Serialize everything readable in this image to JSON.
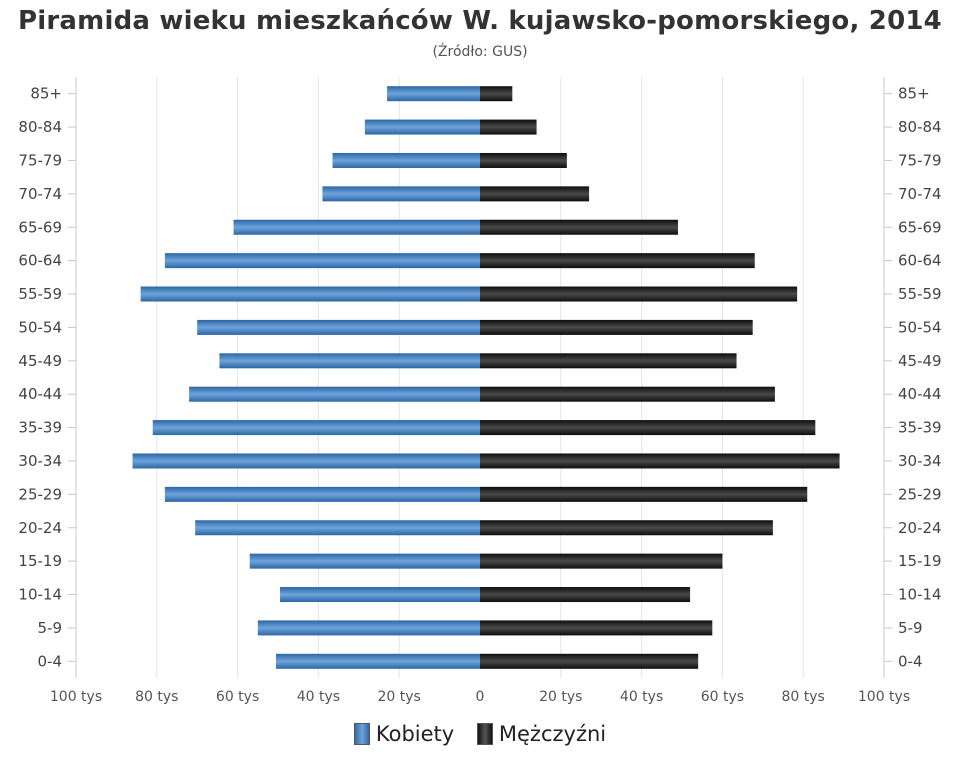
{
  "title": "Piramida wieku mieszkańców W. kujawsko-pomorskiego, 2014",
  "subtitle": "(Źródło: GUS)",
  "legend": {
    "female": "Kobiety",
    "male": "Mężczyźni"
  },
  "colors": {
    "female": "#3a78b8",
    "male": "#1a1a1a"
  },
  "chart_data": {
    "type": "bar",
    "orientation": "horizontal-population-pyramid",
    "categories": [
      "85+",
      "80-84",
      "75-79",
      "70-74",
      "65-69",
      "60-64",
      "55-59",
      "50-54",
      "45-49",
      "40-44",
      "35-39",
      "30-34",
      "25-29",
      "20-24",
      "15-19",
      "10-14",
      "5-9",
      "0-4"
    ],
    "series": [
      {
        "name": "Kobiety",
        "side": "left",
        "values": [
          23,
          28.5,
          36.5,
          39,
          61,
          78,
          84,
          70,
          64.5,
          72,
          81,
          86,
          78,
          70.5,
          57,
          49.5,
          55,
          50.5
        ]
      },
      {
        "name": "Mężczyźni",
        "side": "right",
        "values": [
          8,
          14,
          21.5,
          27,
          49,
          68,
          78.5,
          67.5,
          63.5,
          73,
          83,
          89,
          81,
          72.5,
          60,
          52,
          57.5,
          54
        ]
      }
    ],
    "xlim": [
      -100,
      100
    ],
    "xticks": [
      -100,
      -80,
      -60,
      -40,
      -20,
      0,
      20,
      40,
      60,
      80,
      100
    ],
    "xtick_labels": [
      "100 tys",
      "80 tys",
      "60 tys",
      "40 tys",
      "20 tys",
      "0",
      "20 tys",
      "40 tys",
      "60 tys",
      "80 tys",
      "100 tys"
    ],
    "grid": true,
    "legend_position": "bottom"
  }
}
